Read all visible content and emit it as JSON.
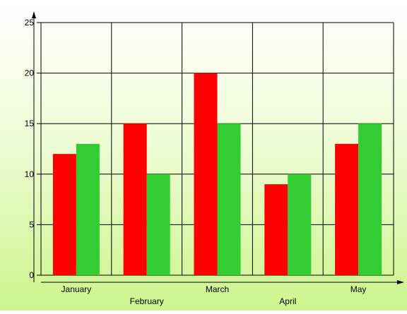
{
  "chart_data": {
    "type": "bar",
    "title": "",
    "xlabel": "",
    "ylabel": "",
    "categories": [
      "January",
      "February",
      "March",
      "April",
      "May"
    ],
    "series": [
      {
        "values": [
          12,
          15,
          20,
          9,
          13
        ],
        "color": "#ff0000"
      },
      {
        "values": [
          13,
          10,
          15,
          10,
          15
        ],
        "color": "#33cc33"
      }
    ],
    "ylim": [
      0,
      25
    ],
    "yticks": [
      0,
      5,
      10,
      15,
      20,
      25
    ],
    "grid": true,
    "legend": "none",
    "colors": {
      "grid": "#000000",
      "axis": "#000000",
      "background_top": "#ffffff",
      "background_bottom": "#ccf58c"
    }
  }
}
